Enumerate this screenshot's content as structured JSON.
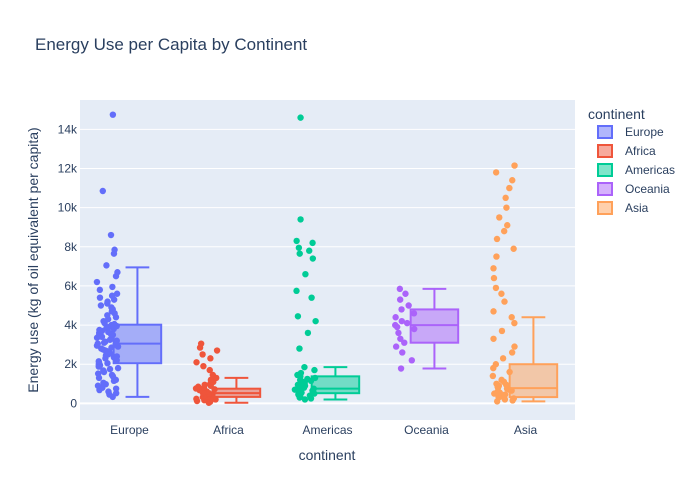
{
  "chart_data": {
    "type": "box",
    "title": "Energy Use per Capita by Continent",
    "xlabel": "continent",
    "ylabel": "Energy use (kg of oil equivalent per capita)",
    "ylim": [
      -850,
      15500
    ],
    "yticks": [
      0,
      2000,
      4000,
      6000,
      8000,
      10000,
      12000,
      14000
    ],
    "ytick_labels": [
      "0",
      "2k",
      "4k",
      "6k",
      "8k",
      "10k",
      "12k",
      "14k"
    ],
    "grid": true,
    "legend_title": "continent",
    "legend_position": "top-right",
    "categories": [
      "Europe",
      "Africa",
      "Americas",
      "Oceania",
      "Asia"
    ],
    "series": [
      {
        "name": "Europe",
        "color": "#636efa",
        "box": {
          "min": 330,
          "q1": 2050,
          "median": 3050,
          "q3": 4020,
          "max": 6950
        },
        "outliers": [
          7050,
          7650,
          7850,
          8600,
          10850,
          14750
        ],
        "points": [
          330,
          450,
          520,
          600,
          680,
          750,
          800,
          900,
          980,
          1050,
          1150,
          1200,
          1300,
          1380,
          1450,
          1520,
          1600,
          1680,
          1750,
          1800,
          1880,
          1950,
          2000,
          2050,
          2100,
          2150,
          2200,
          2250,
          2300,
          2350,
          2400,
          2450,
          2500,
          2550,
          2600,
          2650,
          2700,
          2750,
          2800,
          2850,
          2900,
          2950,
          3000,
          3050,
          3100,
          3150,
          3200,
          3250,
          3300,
          3350,
          3400,
          3450,
          3500,
          3550,
          3600,
          3650,
          3700,
          3750,
          3800,
          3850,
          3900,
          3950,
          4000,
          4050,
          4100,
          4150,
          4200,
          4300,
          4400,
          4500,
          4600,
          4700,
          4800,
          4900,
          5000,
          5100,
          5200,
          5300,
          5400,
          5500,
          5600,
          5800,
          5950,
          6200,
          6500,
          6700,
          7050,
          7650,
          7850,
          8600,
          10850,
          14750
        ]
      },
      {
        "name": "Africa",
        "color": "#ef553b",
        "box": {
          "min": 30,
          "q1": 330,
          "median": 520,
          "q3": 750,
          "max": 1300
        },
        "outliers": [
          1450,
          1700,
          1900,
          2100,
          2300,
          2500,
          2700,
          2850,
          3050
        ],
        "points": [
          30,
          80,
          120,
          160,
          200,
          230,
          260,
          290,
          320,
          350,
          380,
          410,
          440,
          470,
          500,
          520,
          550,
          580,
          610,
          640,
          680,
          720,
          760,
          800,
          850,
          900,
          950,
          1000,
          1100,
          1200,
          1300,
          1450,
          1700,
          1900,
          2100,
          2300,
          2500,
          2700,
          2850,
          3050
        ]
      },
      {
        "name": "Americas",
        "color": "#00cc96",
        "box": {
          "min": 200,
          "q1": 520,
          "median": 750,
          "q3": 1380,
          "max": 1850
        },
        "outliers": [
          2800,
          3600,
          4200,
          4450,
          5400,
          5750,
          6600,
          7400,
          7650,
          7800,
          7950,
          8200,
          8300,
          9400,
          14600
        ],
        "points": [
          200,
          250,
          300,
          350,
          400,
          450,
          500,
          550,
          600,
          650,
          700,
          750,
          800,
          850,
          900,
          950,
          1000,
          1050,
          1100,
          1150,
          1200,
          1250,
          1300,
          1380,
          1450,
          1550,
          1700,
          1850,
          2800,
          3600,
          4200,
          4450,
          5400,
          5750,
          6600,
          7400,
          7650,
          7800,
          7950,
          8200,
          8300,
          9400,
          14600
        ]
      },
      {
        "name": "Oceania",
        "color": "#ab63fa",
        "box": {
          "min": 1780,
          "q1": 3100,
          "median": 4000,
          "q3": 4800,
          "max": 5850
        },
        "outliers": [],
        "points": [
          1780,
          2200,
          2600,
          2900,
          3100,
          3300,
          3600,
          3800,
          3900,
          4000,
          4100,
          4200,
          4400,
          4600,
          4800,
          5000,
          5300,
          5600,
          5850
        ]
      },
      {
        "name": "Asia",
        "color": "#ffa15a",
        "box": {
          "min": 100,
          "q1": 320,
          "median": 780,
          "q3": 2000,
          "max": 4400
        },
        "outliers": [
          4700,
          5200,
          5600,
          5900,
          6400,
          6900,
          7500,
          7900,
          8400,
          8800,
          9100,
          9500,
          10000,
          10500,
          11000,
          11400,
          11800,
          12150
        ],
        "points": [
          100,
          150,
          200,
          250,
          300,
          350,
          400,
          450,
          500,
          550,
          600,
          650,
          700,
          750,
          800,
          850,
          900,
          950,
          1000,
          1100,
          1200,
          1400,
          1600,
          1800,
          2000,
          2300,
          2600,
          2900,
          3300,
          3700,
          4100,
          4400,
          4700,
          5200,
          5600,
          5900,
          6400,
          6900,
          7500,
          7900,
          8400,
          8800,
          9100,
          9500,
          10000,
          10500,
          11000,
          11400,
          11800,
          12150
        ]
      }
    ]
  }
}
